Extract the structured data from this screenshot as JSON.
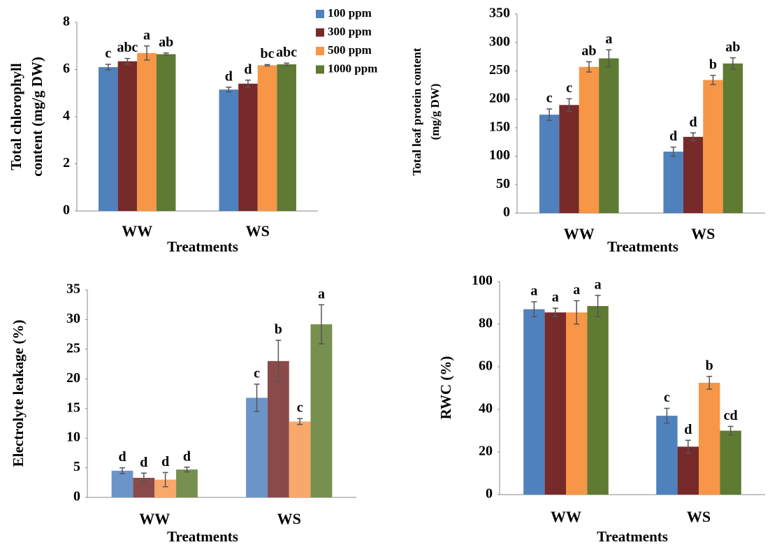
{
  "chart_data": [
    {
      "type": "bar",
      "ylabel": [
        "Total chlorophyll",
        "content (mg/g DW)"
      ],
      "xlabel": "Treatments",
      "categories": [
        "WW",
        "WS"
      ],
      "ylim": [
        0,
        8
      ],
      "yticks": [
        0,
        2,
        4,
        6,
        8
      ],
      "legend": "top-right",
      "series": [
        {
          "name": "100 ppm",
          "color": "#4f81bd",
          "values": [
            6.1,
            5.15
          ],
          "errors": [
            0.12,
            0.1
          ],
          "annotations": [
            "c",
            "d"
          ]
        },
        {
          "name": "300 ppm",
          "color": "#772a2a",
          "values": [
            6.35,
            5.4
          ],
          "errors": [
            0.12,
            0.15
          ],
          "annotations": [
            "abc",
            "d"
          ]
        },
        {
          "name": "500 ppm",
          "color": "#f79646",
          "values": [
            6.7,
            6.18
          ],
          "errors": [
            0.3,
            0.03
          ],
          "annotations": [
            "a",
            "bc"
          ]
        },
        {
          "name": "1000 ppm",
          "color": "#5e7a33",
          "values": [
            6.65,
            6.22
          ],
          "errors": [
            0.05,
            0.05
          ],
          "annotations": [
            "ab",
            "abc"
          ]
        }
      ]
    },
    {
      "type": "bar",
      "ylabel": [
        "Total leaf protein content",
        "(mg/g DW)"
      ],
      "xlabel": "Treatments",
      "categories": [
        "WW",
        "WS"
      ],
      "ylim": [
        0,
        350
      ],
      "yticks": [
        0,
        50,
        100,
        150,
        200,
        250,
        300,
        350
      ],
      "series": [
        {
          "color": "#4f81bd",
          "values": [
            173,
            108
          ],
          "errors": [
            10,
            8
          ],
          "annotations": [
            "c",
            "d"
          ]
        },
        {
          "color": "#772a2a",
          "values": [
            190,
            134
          ],
          "errors": [
            11,
            7
          ],
          "annotations": [
            "c",
            "d"
          ]
        },
        {
          "color": "#f79646",
          "values": [
            257,
            234
          ],
          "errors": [
            9,
            8
          ],
          "annotations": [
            "ab",
            "b"
          ]
        },
        {
          "color": "#5e7a33",
          "values": [
            272,
            263
          ],
          "errors": [
            15,
            10
          ],
          "annotations": [
            "a",
            "ab"
          ]
        }
      ]
    },
    {
      "type": "bar",
      "ylabel": [
        "Electrolyte leakage (%)"
      ],
      "xlabel": "Treatments",
      "categories": [
        "WW",
        "WS"
      ],
      "ylim": [
        0,
        35
      ],
      "yticks": [
        0,
        5,
        10,
        15,
        20,
        25,
        30,
        35
      ],
      "series": [
        {
          "color": "#6b95c9",
          "values": [
            4.5,
            16.8
          ],
          "errors": [
            0.5,
            2.3
          ],
          "annotations": [
            "d",
            "c"
          ]
        },
        {
          "color": "#8b4a4a",
          "values": [
            3.3,
            23
          ],
          "errors": [
            0.8,
            3.5
          ],
          "annotations": [
            "d",
            "b"
          ]
        },
        {
          "color": "#f8a86a",
          "values": [
            3.0,
            12.8
          ],
          "errors": [
            1.2,
            0.5
          ],
          "annotations": [
            "d",
            "c"
          ]
        },
        {
          "color": "#77904f",
          "values": [
            4.7,
            29.2
          ],
          "errors": [
            0.4,
            3.3
          ],
          "annotations": [
            "d",
            "a"
          ]
        }
      ]
    },
    {
      "type": "bar",
      "ylabel": [
        "RWC (%)"
      ],
      "xlabel": "Treatments",
      "categories": [
        "WW",
        "WS"
      ],
      "ylim": [
        0,
        100
      ],
      "yticks": [
        0,
        20,
        40,
        60,
        80,
        100
      ],
      "series": [
        {
          "color": "#4f81bd",
          "values": [
            87,
            37
          ],
          "errors": [
            3.5,
            3.5
          ],
          "annotations": [
            "a",
            "c"
          ]
        },
        {
          "color": "#772a2a",
          "values": [
            85.5,
            22.5
          ],
          "errors": [
            2,
            3
          ],
          "annotations": [
            "a",
            "d"
          ]
        },
        {
          "color": "#f79646",
          "values": [
            85.5,
            52.5
          ],
          "errors": [
            5.5,
            3
          ],
          "annotations": [
            "a",
            "b"
          ]
        },
        {
          "color": "#5e7a33",
          "values": [
            88.5,
            30
          ],
          "errors": [
            5,
            2
          ],
          "annotations": [
            "a",
            "cd"
          ]
        }
      ]
    }
  ]
}
